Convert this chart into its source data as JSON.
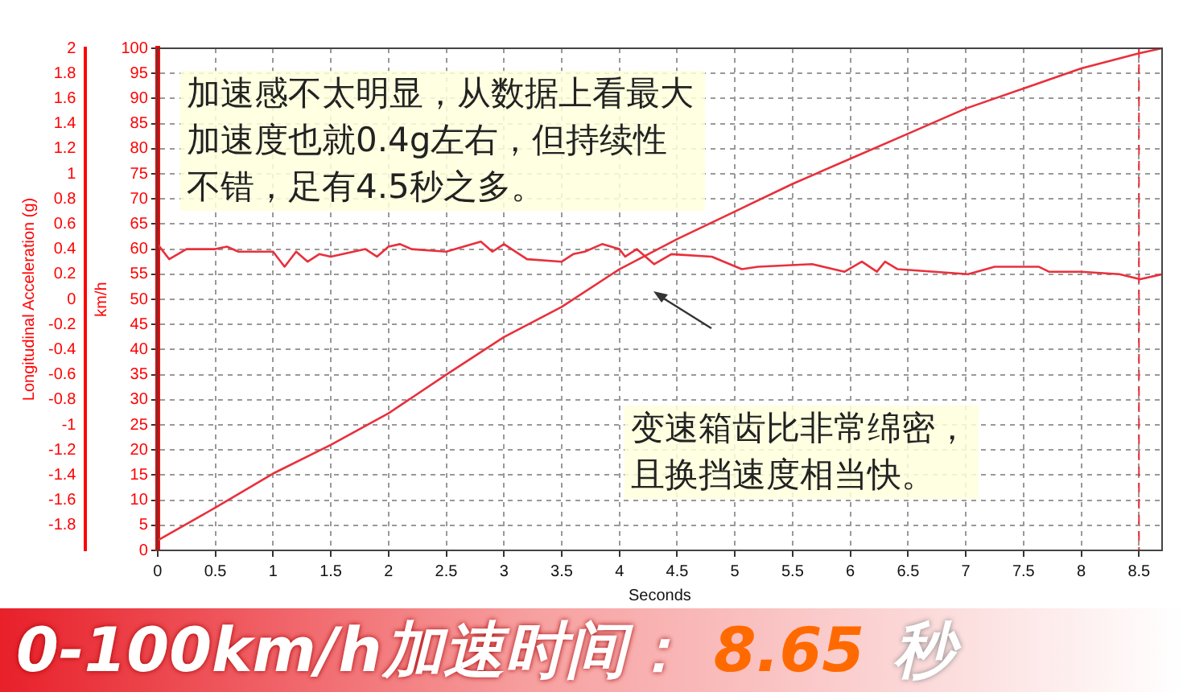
{
  "chart_data": {
    "type": "line",
    "xlabel": "Seconds",
    "ylabel": "km/h",
    "y2label": "Longitudinal Acceleration (g)",
    "series": [
      {
        "color": "#e8303c",
        "x": [
          0,
          0.5,
          1,
          1.5,
          2,
          2.5,
          3,
          3.5,
          4,
          4.5,
          5,
          5.5,
          6,
          6.5,
          7,
          7.5,
          8,
          8.5,
          8.7
        ],
        "values": [
          2,
          8.5,
          15.3,
          21,
          27.3,
          35,
          42.5,
          48.5,
          56,
          62,
          67.5,
          73,
          78,
          83,
          88,
          92,
          96,
          99,
          100
        ]
      },
      {
        "color": "#e8303c",
        "axis": "y2",
        "x": [
          0,
          0.1,
          0.25,
          0.5,
          0.6,
          0.7,
          1,
          1.1,
          1.2,
          1.3,
          1.4,
          1.5,
          1.8,
          1.9,
          2,
          2.1,
          2.2,
          2.5,
          2.8,
          2.9,
          3,
          3.2,
          3.5,
          3.6,
          3.7,
          3.85,
          4,
          4.05,
          4.15,
          4.3,
          4.45,
          4.8,
          5.06,
          5.2,
          5.67,
          5.95,
          6.1,
          6.23,
          6.3,
          6.41,
          7.02,
          7.25,
          7.63,
          7.72,
          8,
          8.33,
          8.51,
          8.7
        ],
        "values": [
          0.44,
          0.32,
          0.4,
          0.4,
          0.42,
          0.38,
          0.38,
          0.26,
          0.38,
          0.3,
          0.36,
          0.34,
          0.4,
          0.34,
          0.42,
          0.44,
          0.4,
          0.38,
          0.46,
          0.38,
          0.44,
          0.32,
          0.3,
          0.36,
          0.38,
          0.44,
          0.4,
          0.34,
          0.4,
          0.28,
          0.36,
          0.34,
          0.24,
          0.26,
          0.28,
          0.22,
          0.3,
          0.22,
          0.3,
          0.24,
          0.2,
          0.26,
          0.26,
          0.22,
          0.22,
          0.2,
          0.16,
          0.2
        ]
      }
    ],
    "xlim": [
      0,
      8.7
    ],
    "xticks": [
      0,
      0.5,
      1,
      1.5,
      2,
      2.5,
      3,
      3.5,
      4,
      4.5,
      5,
      5.5,
      6,
      6.5,
      7,
      7.5,
      8,
      8.5
    ],
    "ylim": [
      0,
      100
    ],
    "yticks": [
      0,
      5,
      10,
      15,
      20,
      25,
      30,
      35,
      40,
      45,
      50,
      55,
      60,
      65,
      70,
      75,
      80,
      85,
      90,
      95,
      100
    ],
    "y2lim": [
      -2,
      2
    ],
    "y2ticks": [
      -1.8,
      -1.6,
      -1.4,
      -1.2,
      -1,
      -0.8,
      -0.6,
      -0.4,
      -0.2,
      0,
      0.2,
      0.4,
      0.6,
      0.8,
      1,
      1.2,
      1.4,
      1.6,
      1.8,
      2
    ],
    "ref_lines": [
      {
        "axis": "x",
        "value": 8.5,
        "label": null,
        "color": "#e8303c",
        "line_style": "dashed"
      }
    ],
    "grid": true,
    "legend": false,
    "marker": "none",
    "line_style": "solid",
    "annotations": [
      "加速感不太明显，从数据上看最大加速度也就0.4g左右，但持续性不错，足有4.5秒之多。",
      "变速箱齿比非常绵密，且换挡速度相当快。",
      "0-100km/h加速时间：",
      "8.65",
      "秒"
    ]
  }
}
